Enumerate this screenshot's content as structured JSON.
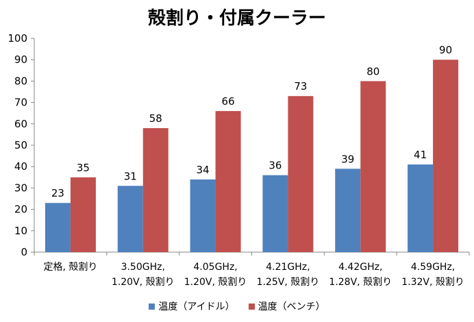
{
  "chart_data": {
    "type": "bar",
    "title": "殻割り・付属クーラー",
    "categories": [
      [
        "定格, 殻割り"
      ],
      [
        "3.50GHz,",
        "1.20V, 殻割り"
      ],
      [
        "4.05GHz,",
        "1.20V, 殻割り"
      ],
      [
        "4.21GHz,",
        "1.25V, 殻割り"
      ],
      [
        "4.42GHz,",
        "1.28V, 殻割り"
      ],
      [
        "4.59GHz,",
        "1.32V, 殻割り"
      ]
    ],
    "series": [
      {
        "name": "温度（アイドル）",
        "color": "#4f81bd",
        "values": [
          23,
          31,
          34,
          36,
          39,
          41
        ]
      },
      {
        "name": "温度（ベンチ）",
        "color": "#c0504d",
        "values": [
          35,
          58,
          66,
          73,
          80,
          90
        ]
      }
    ],
    "ylim": [
      0,
      100
    ],
    "yticks": [
      0,
      10,
      20,
      30,
      40,
      50,
      60,
      70,
      80,
      90,
      100
    ],
    "grid": false,
    "legend_position": "bottom"
  }
}
